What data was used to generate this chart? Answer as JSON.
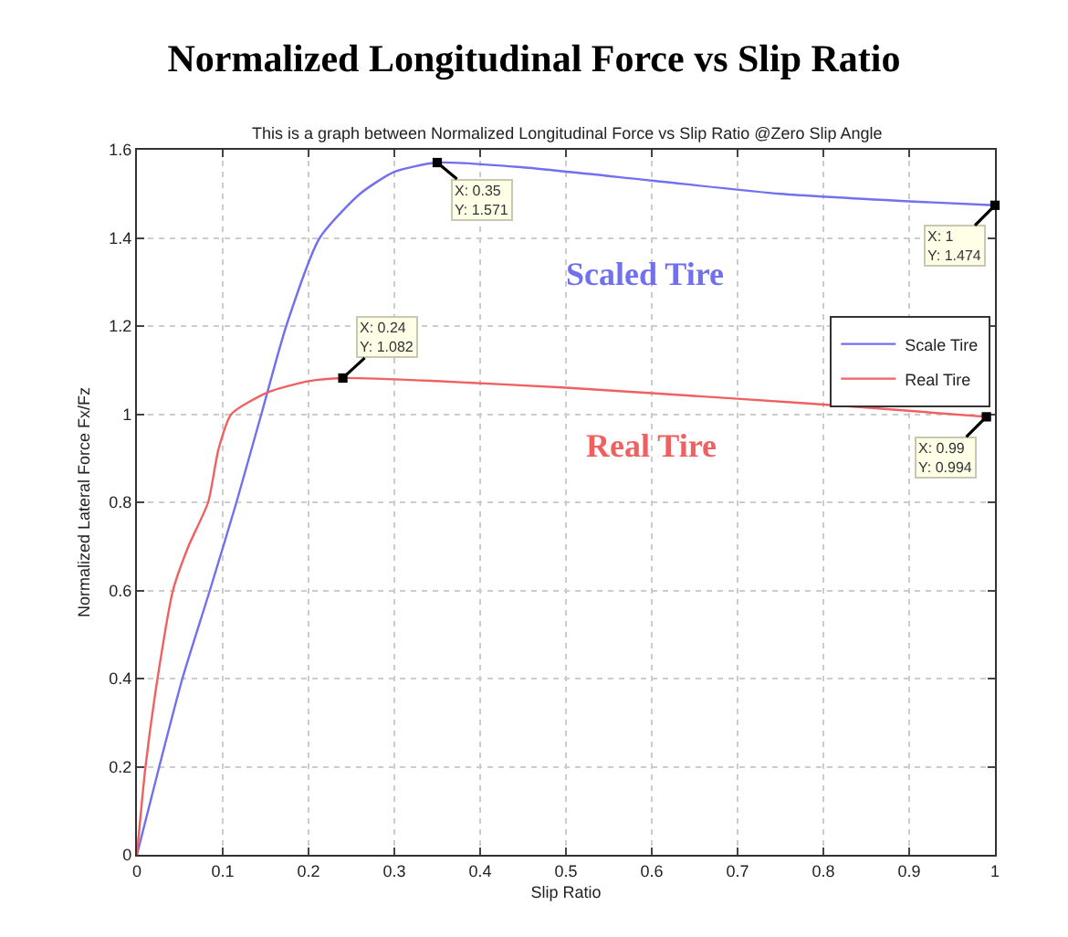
{
  "chart_data": {
    "type": "line",
    "title": "Normalized Longitudinal Force vs Slip Ratio",
    "subtitle": "This is a graph between Normalized Longitudinal Force vs Slip Ratio @Zero Slip Angle",
    "xlabel": "Slip Ratio",
    "ylabel": "Normalized Lateral Force Fx/Fz",
    "series": [
      {
        "name": "Scale Tire",
        "color": "#7070f0",
        "x": [
          0,
          0.026,
          0.053,
          0.085,
          0.116,
          0.145,
          0.174,
          0.213,
          0.26,
          0.3,
          0.35,
          0.45,
          0.6,
          0.75,
          0.9,
          1
        ],
        "values": [
          0,
          0.2,
          0.4,
          0.6,
          0.8,
          1.0,
          1.2,
          1.4,
          1.5,
          1.55,
          1.571,
          1.56,
          1.53,
          1.5,
          1.483,
          1.474
        ]
      },
      {
        "name": "Real Tire",
        "color": "#f06060",
        "x": [
          0,
          0.01,
          0.024,
          0.042,
          0.06,
          0.083,
          0.095,
          0.11,
          0.153,
          0.2,
          0.24,
          0.35,
          0.5,
          0.7,
          0.85,
          0.99
        ],
        "values": [
          0,
          0.2,
          0.4,
          0.6,
          0.7,
          0.8,
          0.92,
          1.0,
          1.05,
          1.075,
          1.082,
          1.075,
          1.06,
          1.035,
          1.015,
          0.994
        ]
      }
    ],
    "annotations": [
      {
        "text": "X: 0.35\nY: 1.571",
        "x": 0.35,
        "y": 1.571
      },
      {
        "text": "X: 0.24\nY: 1.082",
        "x": 0.24,
        "y": 1.082
      },
      {
        "text": "X: 1\nY: 1.474",
        "x": 1,
        "y": 1.474
      },
      {
        "text": "X: 0.99\nY: 0.994",
        "x": 0.99,
        "y": 0.994
      },
      "Scaled Tire",
      "Real Tire"
    ],
    "xlim": [
      0,
      1
    ],
    "xticks": [
      0,
      0.1,
      0.2,
      0.3,
      0.4,
      0.5,
      0.6,
      0.7,
      0.8,
      0.9,
      1
    ],
    "ylim": [
      0,
      1.6
    ],
    "yticks": [
      0,
      0.2,
      0.4,
      0.6,
      0.8,
      1,
      1.2,
      1.4,
      1.6
    ],
    "grid": true,
    "legend": "right",
    "line_style": "solid",
    "marker": "none"
  }
}
